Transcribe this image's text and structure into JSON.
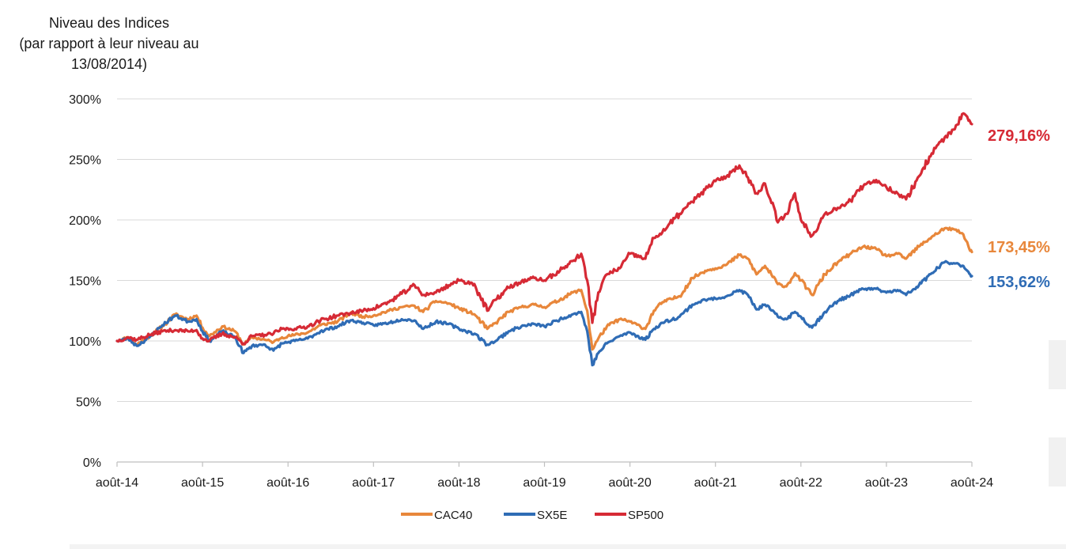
{
  "chart_data": {
    "type": "line",
    "title_lines": [
      "Niveau des Indices",
      "(par rapport à leur niveau au",
      "13/08/2014)"
    ],
    "x_tick_labels": [
      "août-14",
      "août-15",
      "août-16",
      "août-17",
      "août-18",
      "août-19",
      "août-20",
      "août-21",
      "août-22",
      "août-23",
      "août-24"
    ],
    "y_tick_labels": [
      "0%",
      "50%",
      "100%",
      "150%",
      "200%",
      "250%",
      "300%"
    ],
    "y_ticks": [
      0,
      50,
      100,
      150,
      200,
      250,
      300
    ],
    "ylim": [
      0,
      300
    ],
    "xlim": [
      2014.62,
      2024.62
    ],
    "grid": "horizontal",
    "legend_position": "bottom",
    "series": [
      {
        "name": "CAC40",
        "color": "#E8873B",
        "end_label": "173,45%",
        "points": [
          [
            2014.62,
            100
          ],
          [
            2014.75,
            103
          ],
          [
            2014.85,
            97
          ],
          [
            2015.0,
            104
          ],
          [
            2015.15,
            112
          ],
          [
            2015.3,
            122
          ],
          [
            2015.45,
            118
          ],
          [
            2015.55,
            121
          ],
          [
            2015.62,
            111
          ],
          [
            2015.7,
            104
          ],
          [
            2015.85,
            112
          ],
          [
            2016.0,
            108
          ],
          [
            2016.1,
            97
          ],
          [
            2016.2,
            103
          ],
          [
            2016.35,
            101
          ],
          [
            2016.45,
            99
          ],
          [
            2016.55,
            103
          ],
          [
            2016.7,
            105
          ],
          [
            2016.85,
            107
          ],
          [
            2017.0,
            113
          ],
          [
            2017.2,
            116
          ],
          [
            2017.35,
            123
          ],
          [
            2017.5,
            120
          ],
          [
            2017.62,
            121
          ],
          [
            2017.8,
            125
          ],
          [
            2017.95,
            128
          ],
          [
            2018.1,
            129
          ],
          [
            2018.2,
            124
          ],
          [
            2018.35,
            133
          ],
          [
            2018.5,
            131
          ],
          [
            2018.62,
            127
          ],
          [
            2018.8,
            122
          ],
          [
            2018.95,
            110
          ],
          [
            2019.05,
            115
          ],
          [
            2019.2,
            124
          ],
          [
            2019.35,
            128
          ],
          [
            2019.5,
            130
          ],
          [
            2019.62,
            128
          ],
          [
            2019.8,
            134
          ],
          [
            2019.95,
            140
          ],
          [
            2020.05,
            142
          ],
          [
            2020.12,
            125
          ],
          [
            2020.18,
            93
          ],
          [
            2020.25,
            102
          ],
          [
            2020.35,
            112
          ],
          [
            2020.5,
            118
          ],
          [
            2020.62,
            116
          ],
          [
            2020.8,
            110
          ],
          [
            2020.9,
            125
          ],
          [
            2021.0,
            132
          ],
          [
            2021.2,
            137
          ],
          [
            2021.35,
            152
          ],
          [
            2021.5,
            158
          ],
          [
            2021.62,
            160
          ],
          [
            2021.75,
            163
          ],
          [
            2021.9,
            171
          ],
          [
            2022.0,
            168
          ],
          [
            2022.1,
            155
          ],
          [
            2022.2,
            162
          ],
          [
            2022.35,
            147
          ],
          [
            2022.45,
            145
          ],
          [
            2022.55,
            156
          ],
          [
            2022.62,
            150
          ],
          [
            2022.75,
            138
          ],
          [
            2022.9,
            155
          ],
          [
            2023.05,
            165
          ],
          [
            2023.2,
            172
          ],
          [
            2023.35,
            178
          ],
          [
            2023.5,
            176
          ],
          [
            2023.62,
            170
          ],
          [
            2023.75,
            172
          ],
          [
            2023.85,
            168
          ],
          [
            2024.0,
            178
          ],
          [
            2024.15,
            186
          ],
          [
            2024.3,
            193
          ],
          [
            2024.42,
            192
          ],
          [
            2024.52,
            188
          ],
          [
            2024.58,
            178
          ],
          [
            2024.62,
            173.45
          ]
        ]
      },
      {
        "name": "SX5E",
        "color": "#2F6CB5",
        "end_label": "153,62%",
        "points": [
          [
            2014.62,
            100
          ],
          [
            2014.75,
            102
          ],
          [
            2014.85,
            96
          ],
          [
            2015.0,
            103
          ],
          [
            2015.15,
            113
          ],
          [
            2015.3,
            121
          ],
          [
            2015.45,
            116
          ],
          [
            2015.55,
            118
          ],
          [
            2015.62,
            108
          ],
          [
            2015.7,
            100
          ],
          [
            2015.85,
            108
          ],
          [
            2016.0,
            103
          ],
          [
            2016.1,
            90
          ],
          [
            2016.2,
            96
          ],
          [
            2016.35,
            97
          ],
          [
            2016.45,
            92
          ],
          [
            2016.55,
            98
          ],
          [
            2016.7,
            100
          ],
          [
            2016.85,
            102
          ],
          [
            2017.0,
            108
          ],
          [
            2017.2,
            112
          ],
          [
            2017.35,
            117
          ],
          [
            2017.5,
            115
          ],
          [
            2017.62,
            113
          ],
          [
            2017.8,
            115
          ],
          [
            2017.95,
            118
          ],
          [
            2018.1,
            117
          ],
          [
            2018.2,
            110
          ],
          [
            2018.35,
            116
          ],
          [
            2018.5,
            114
          ],
          [
            2018.62,
            110
          ],
          [
            2018.8,
            106
          ],
          [
            2018.95,
            97
          ],
          [
            2019.05,
            100
          ],
          [
            2019.2,
            108
          ],
          [
            2019.35,
            112
          ],
          [
            2019.5,
            114
          ],
          [
            2019.62,
            112
          ],
          [
            2019.8,
            118
          ],
          [
            2019.95,
            122
          ],
          [
            2020.05,
            124
          ],
          [
            2020.12,
            108
          ],
          [
            2020.18,
            80
          ],
          [
            2020.25,
            90
          ],
          [
            2020.35,
            98
          ],
          [
            2020.5,
            104
          ],
          [
            2020.62,
            107
          ],
          [
            2020.8,
            101
          ],
          [
            2020.9,
            110
          ],
          [
            2021.0,
            115
          ],
          [
            2021.2,
            120
          ],
          [
            2021.35,
            130
          ],
          [
            2021.5,
            134
          ],
          [
            2021.62,
            135
          ],
          [
            2021.75,
            137
          ],
          [
            2021.9,
            142
          ],
          [
            2022.0,
            138
          ],
          [
            2022.1,
            126
          ],
          [
            2022.2,
            130
          ],
          [
            2022.35,
            120
          ],
          [
            2022.45,
            118
          ],
          [
            2022.55,
            124
          ],
          [
            2022.62,
            120
          ],
          [
            2022.75,
            111
          ],
          [
            2022.9,
            124
          ],
          [
            2023.05,
            133
          ],
          [
            2023.2,
            138
          ],
          [
            2023.35,
            143
          ],
          [
            2023.5,
            143
          ],
          [
            2023.62,
            140
          ],
          [
            2023.75,
            142
          ],
          [
            2023.85,
            138
          ],
          [
            2024.0,
            146
          ],
          [
            2024.15,
            156
          ],
          [
            2024.3,
            165
          ],
          [
            2024.42,
            164
          ],
          [
            2024.52,
            162
          ],
          [
            2024.58,
            157
          ],
          [
            2024.62,
            153.62
          ]
        ]
      },
      {
        "name": "SP500",
        "color": "#D62A35",
        "end_label": "279,16%",
        "points": [
          [
            2014.62,
            100
          ],
          [
            2014.75,
            103
          ],
          [
            2014.85,
            101
          ],
          [
            2015.0,
            105
          ],
          [
            2015.15,
            108
          ],
          [
            2015.3,
            109
          ],
          [
            2015.45,
            108
          ],
          [
            2015.55,
            109
          ],
          [
            2015.62,
            102
          ],
          [
            2015.7,
            100
          ],
          [
            2015.85,
            106
          ],
          [
            2016.0,
            103
          ],
          [
            2016.1,
            98
          ],
          [
            2016.2,
            104
          ],
          [
            2016.35,
            105
          ],
          [
            2016.45,
            106
          ],
          [
            2016.55,
            110
          ],
          [
            2016.7,
            110
          ],
          [
            2016.85,
            112
          ],
          [
            2017.0,
            117
          ],
          [
            2017.2,
            121
          ],
          [
            2017.35,
            123
          ],
          [
            2017.5,
            125
          ],
          [
            2017.62,
            127
          ],
          [
            2017.8,
            132
          ],
          [
            2017.95,
            139
          ],
          [
            2018.1,
            146
          ],
          [
            2018.2,
            138
          ],
          [
            2018.35,
            140
          ],
          [
            2018.5,
            146
          ],
          [
            2018.62,
            150
          ],
          [
            2018.8,
            147
          ],
          [
            2018.95,
            125
          ],
          [
            2019.05,
            134
          ],
          [
            2019.2,
            144
          ],
          [
            2019.35,
            149
          ],
          [
            2019.5,
            152
          ],
          [
            2019.62,
            150
          ],
          [
            2019.8,
            158
          ],
          [
            2019.95,
            166
          ],
          [
            2020.05,
            172
          ],
          [
            2020.12,
            150
          ],
          [
            2020.18,
            115
          ],
          [
            2020.25,
            140
          ],
          [
            2020.35,
            155
          ],
          [
            2020.5,
            160
          ],
          [
            2020.62,
            172
          ],
          [
            2020.8,
            168
          ],
          [
            2020.9,
            185
          ],
          [
            2021.0,
            190
          ],
          [
            2021.2,
            205
          ],
          [
            2021.35,
            215
          ],
          [
            2021.5,
            225
          ],
          [
            2021.62,
            232
          ],
          [
            2021.75,
            236
          ],
          [
            2021.9,
            245
          ],
          [
            2022.0,
            235
          ],
          [
            2022.1,
            222
          ],
          [
            2022.2,
            230
          ],
          [
            2022.35,
            198
          ],
          [
            2022.45,
            205
          ],
          [
            2022.55,
            222
          ],
          [
            2022.62,
            200
          ],
          [
            2022.75,
            187
          ],
          [
            2022.9,
            205
          ],
          [
            2023.05,
            210
          ],
          [
            2023.2,
            216
          ],
          [
            2023.35,
            228
          ],
          [
            2023.5,
            233
          ],
          [
            2023.62,
            227
          ],
          [
            2023.75,
            222
          ],
          [
            2023.85,
            217
          ],
          [
            2024.0,
            236
          ],
          [
            2024.15,
            255
          ],
          [
            2024.3,
            268
          ],
          [
            2024.42,
            275
          ],
          [
            2024.52,
            288
          ],
          [
            2024.58,
            282
          ],
          [
            2024.62,
            279.16
          ]
        ]
      }
    ]
  }
}
